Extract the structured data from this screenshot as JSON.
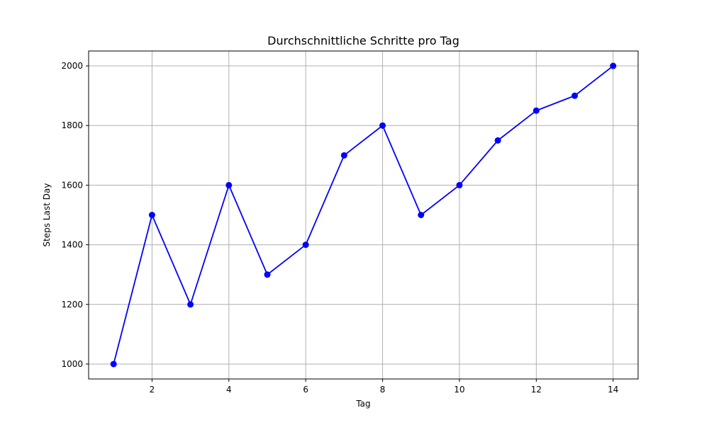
{
  "chart_data": {
    "type": "line",
    "title": "Durchschnittliche Schritte pro Tag",
    "xlabel": "Tag",
    "ylabel": "Steps Last Day",
    "x": [
      1,
      2,
      3,
      4,
      5,
      6,
      7,
      8,
      9,
      10,
      11,
      12,
      13,
      14
    ],
    "series": [
      {
        "values": [
          1000,
          1500,
          1200,
          1600,
          1300,
          1400,
          1700,
          1800,
          1500,
          1600,
          1750,
          1850,
          1900,
          2000
        ],
        "color": "#0000ff",
        "marker": "circle"
      }
    ],
    "xlim": [
      0.35,
      14.65
    ],
    "ylim": [
      950,
      2050
    ],
    "xticks": [
      2,
      4,
      6,
      8,
      10,
      12,
      14
    ],
    "yticks": [
      1000,
      1200,
      1400,
      1600,
      1800,
      2000
    ],
    "grid": true,
    "grid_color": "#b0b0b0",
    "legend": "none"
  }
}
